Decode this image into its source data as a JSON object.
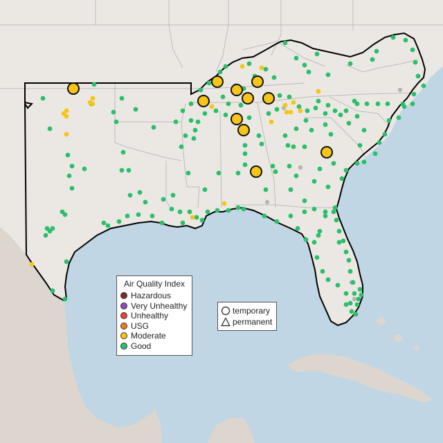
{
  "map": {
    "colors": {
      "water": "#c0d6e4",
      "land": "#ebe8e4",
      "land_south": "#dcd6cf",
      "state_border": "#bcbcbc",
      "region_outline": "#000000"
    }
  },
  "legend": {
    "title": "Air Quality Index",
    "categories": [
      {
        "label": "Hazardous",
        "color": "#7e2c2c"
      },
      {
        "label": "Very Unhealthy",
        "color": "#8f4bb1"
      },
      {
        "label": "Unhealthy",
        "color": "#e8443a"
      },
      {
        "label": "USG",
        "color": "#ea7b1c"
      },
      {
        "label": "Moderate",
        "color": "#f5c518"
      },
      {
        "label": "Good",
        "color": "#2bbf6a"
      }
    ]
  },
  "shape_legend": {
    "temporary": "temporary",
    "permanent": "permanent"
  },
  "monitors": {
    "summary": {
      "Moderate": 37,
      "Good": 200,
      "No data": 6
    },
    "good_color": "#2bbf6a",
    "moderate_color": "#f5c518",
    "nodata_color": "#b5b5b5"
  }
}
